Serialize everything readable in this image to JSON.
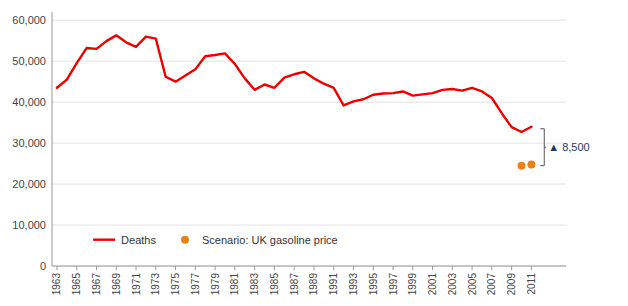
{
  "chart_data": {
    "type": "line",
    "x": [
      1963,
      1964,
      1965,
      1966,
      1967,
      1968,
      1969,
      1970,
      1971,
      1972,
      1973,
      1974,
      1975,
      1976,
      1977,
      1978,
      1979,
      1980,
      1981,
      1982,
      1983,
      1984,
      1985,
      1986,
      1987,
      1988,
      1989,
      1990,
      1991,
      1992,
      1993,
      1994,
      1995,
      1996,
      1997,
      1998,
      1999,
      2000,
      2001,
      2002,
      2003,
      2004,
      2005,
      2006,
      2007,
      2008,
      2009,
      2010,
      2011
    ],
    "series": [
      {
        "name": "Deaths",
        "color": "#EE0000",
        "line_style": "solid",
        "values": [
          43500,
          45500,
          49500,
          53200,
          53000,
          54900,
          56300,
          54600,
          53500,
          56000,
          55500,
          46200,
          45000,
          46500,
          48000,
          51200,
          51500,
          51900,
          49300,
          45800,
          43000,
          44300,
          43500,
          46000,
          46800,
          47400,
          45800,
          44500,
          43500,
          39200,
          40200,
          40700,
          41800,
          42100,
          42200,
          42600,
          41600,
          41900,
          42200,
          43000,
          43200,
          42800,
          43500,
          42600,
          41000,
          37300,
          33900,
          32700,
          34000
        ]
      },
      {
        "name": "Scenario: UK gasoline price",
        "color": "#E8821A",
        "marker": "circle",
        "line_style": "none",
        "values": [
          null,
          null,
          null,
          null,
          null,
          null,
          null,
          null,
          null,
          null,
          null,
          null,
          null,
          null,
          null,
          null,
          null,
          null,
          null,
          null,
          null,
          null,
          null,
          null,
          null,
          null,
          null,
          null,
          null,
          null,
          null,
          null,
          null,
          null,
          null,
          null,
          null,
          null,
          null,
          null,
          null,
          null,
          null,
          null,
          null,
          null,
          null,
          24500,
          24800
        ]
      }
    ],
    "xlim": [
      1962.5,
      2014.5
    ],
    "xticks": [
      1963,
      1965,
      1967,
      1969,
      1971,
      1973,
      1975,
      1977,
      1979,
      1981,
      1983,
      1985,
      1987,
      1989,
      1991,
      1993,
      1995,
      1997,
      1999,
      2001,
      2003,
      2005,
      2007,
      2009,
      2011
    ],
    "ylim": [
      0,
      62000
    ],
    "yticks": [
      0,
      {
        "value": 10000,
        "label": "10,000"
      },
      {
        "value": 20000,
        "label": "20,000"
      },
      {
        "value": 30000,
        "label": "30,000"
      },
      {
        "value": 40000,
        "label": "40,000"
      },
      {
        "value": 50000,
        "label": "50,000"
      },
      {
        "value": 60000,
        "label": "60,000"
      }
    ],
    "grid": true,
    "legend": "lower left",
    "annotations": [
      {
        "text": "▲ 8,500",
        "x": 2012.3,
        "y1": 24500,
        "y2": 33500,
        "color": "#1F3864"
      }
    ]
  }
}
